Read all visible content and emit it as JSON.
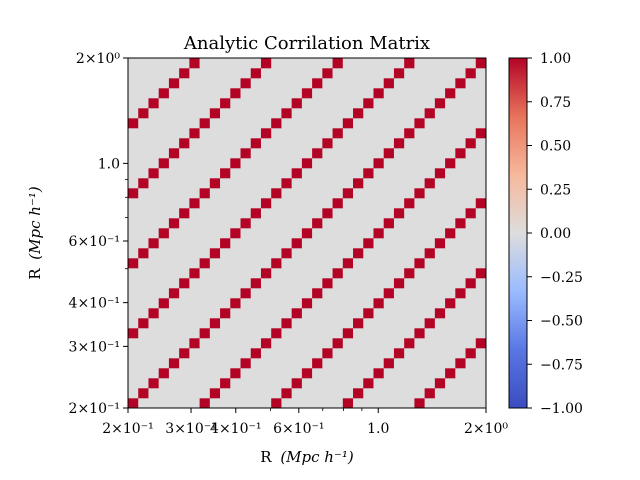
{
  "chart_data": {
    "type": "heatmap",
    "title": "Analytic Corrilation Matrix",
    "xlabel_prefix": "R",
    "ylabel_prefix": "R",
    "axis_unit": "(Mpc h⁻¹)",
    "xscale": "log",
    "yscale": "log",
    "xlim": [
      0.2,
      2.0
    ],
    "ylim": [
      0.2,
      2.0
    ],
    "n_bins": 35,
    "pattern": "value is 1.00 where the bin offset (column - row) is a multiple of 7, otherwise 0.00",
    "period_bins": 7,
    "diagonal_value": 1.0,
    "off_diagonal_value": 0.0,
    "x_ticks": [
      {
        "value": 0.2,
        "label": "2×10⁻¹"
      },
      {
        "value": 0.3,
        "label": "3×10⁻¹"
      },
      {
        "value": 0.4,
        "label": "4×10⁻¹"
      },
      {
        "value": 0.6,
        "label": "6×10⁻¹"
      },
      {
        "value": 1.0,
        "label": "1.0"
      },
      {
        "value": 2.0,
        "label": "2×10⁰"
      }
    ],
    "y_ticks": [
      {
        "value": 0.2,
        "label": "2×10⁻¹"
      },
      {
        "value": 0.3,
        "label": "3×10⁻¹"
      },
      {
        "value": 0.4,
        "label": "4×10⁻¹"
      },
      {
        "value": 0.6,
        "label": "6×10⁻¹"
      },
      {
        "value": 1.0,
        "label": "1.0"
      },
      {
        "value": 2.0,
        "label": "2×10⁰"
      }
    ],
    "minor_ticks": [
      0.5,
      0.7,
      0.8,
      0.9
    ],
    "colorbar": {
      "colormap": "coolwarm",
      "range": [
        -1.0,
        1.0
      ],
      "ticks": [
        1.0,
        0.75,
        0.5,
        0.25,
        0.0,
        -0.25,
        -0.5,
        -0.75,
        -1.0
      ],
      "tick_labels": [
        "1.00",
        "0.75",
        "0.50",
        "0.25",
        "0.00",
        "−0.25",
        "−0.50",
        "−0.75",
        "−1.00"
      ],
      "colors": [
        "#3b4cc0",
        "#7b9ff9",
        "#c0d4f5",
        "#dddddd",
        "#f2cbb7",
        "#ee8468",
        "#b40426"
      ]
    },
    "cell_color_one": "#b40426",
    "cell_color_zero": "#dddddd"
  }
}
